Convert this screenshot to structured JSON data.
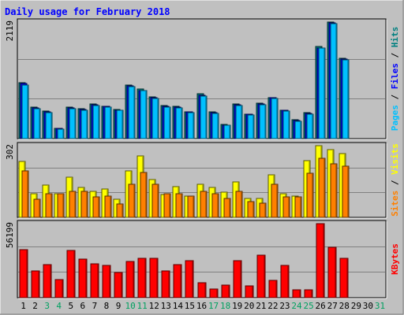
{
  "chart_data": {
    "type": "bar",
    "title": "Daily usage for February 2018",
    "categories": [
      "1",
      "2",
      "3",
      "4",
      "5",
      "6",
      "7",
      "8",
      "9",
      "10",
      "11",
      "12",
      "13",
      "14",
      "15",
      "16",
      "17",
      "18",
      "19",
      "20",
      "21",
      "22",
      "23",
      "24",
      "25",
      "26",
      "27",
      "28",
      "29",
      "30",
      "31"
    ],
    "weekend_days": [
      "3",
      "4",
      "10",
      "11",
      "17",
      "18",
      "24",
      "25",
      "31"
    ],
    "panels": [
      {
        "id": "hits_files_pages",
        "max_label": "2119",
        "ylim": [
          0,
          2119
        ],
        "grid": true,
        "right_label": [
          {
            "text": "Pages",
            "color": "#00c0ff"
          },
          {
            "text": " / ",
            "color": "#000000"
          },
          {
            "text": "Files",
            "color": "#0000ff"
          },
          {
            "text": " / ",
            "color": "#000000"
          },
          {
            "text": "Hits",
            "color": "#008080"
          }
        ],
        "series": [
          {
            "name": "Hits",
            "color": "#008080",
            "values": [
              1020,
              570,
              500,
              190,
              570,
              550,
              630,
              590,
              530,
              980,
              900,
              760,
              600,
              580,
              490,
              810,
              480,
              260,
              630,
              450,
              650,
              750,
              520,
              340,
              470,
              1670,
              2119,
              1460,
              0,
              0,
              0
            ]
          },
          {
            "name": "Files",
            "color": "#0000ff",
            "values": [
              1000,
              560,
              480,
              180,
              560,
              530,
              610,
              580,
              520,
              960,
              880,
              740,
              580,
              570,
              480,
              790,
              470,
              250,
              610,
              440,
              630,
              740,
              510,
              330,
              460,
              1650,
              2100,
              1440,
              0,
              0,
              0
            ]
          },
          {
            "name": "Pages",
            "color": "#00c0ff",
            "values": [
              980,
              550,
              470,
              175,
              550,
              520,
              600,
              570,
              510,
              950,
              870,
              730,
              570,
              560,
              470,
              780,
              460,
              245,
              600,
              430,
              620,
              730,
              500,
              320,
              450,
              1640,
              2090,
              1430,
              0,
              0,
              0
            ]
          }
        ]
      },
      {
        "id": "visits_sites",
        "max_label": "302",
        "ylim": [
          0,
          302
        ],
        "grid": true,
        "right_label": [
          {
            "text": "Sites",
            "color": "#ff8000"
          },
          {
            "text": " / ",
            "color": "#000000"
          },
          {
            "text": "Visits",
            "color": "#ffff00"
          }
        ],
        "series": [
          {
            "name": "Visits",
            "color": "#ffff00",
            "values": [
              235,
              100,
              135,
              100,
              170,
              125,
              110,
              120,
              75,
              195,
              260,
              160,
              95,
              130,
              90,
              140,
              125,
              105,
              150,
              80,
              80,
              180,
              100,
              90,
              240,
              302,
              285,
              270,
              0,
              0,
              0
            ]
          },
          {
            "name": "Sites",
            "color": "#ff8000",
            "values": [
              195,
              75,
              100,
              100,
              110,
              110,
              85,
              90,
              55,
              140,
              190,
              140,
              100,
              100,
              90,
              110,
              100,
              80,
              110,
              65,
              60,
              140,
              85,
              85,
              185,
              250,
              225,
              215,
              0,
              0,
              0
            ]
          }
        ]
      },
      {
        "id": "kbytes",
        "max_label": "56199",
        "ylim": [
          0,
          56199
        ],
        "grid": true,
        "right_label": [
          {
            "text": "KBytes",
            "color": "#ff0000"
          }
        ],
        "series": [
          {
            "name": "KBytes",
            "color": "#ff0000",
            "values": [
              36500,
              20500,
              25300,
              13500,
              36000,
              29200,
              25500,
              24800,
              19000,
              27500,
              29800,
              29800,
              20500,
              25000,
              28100,
              11200,
              6300,
              9400,
              28100,
              8800,
              32300,
              13200,
              24300,
              6100,
              6100,
              56199,
              38000,
              30000,
              0,
              0,
              0
            ]
          }
        ]
      }
    ]
  },
  "colors": {
    "frame_bg": "#c0c0c0",
    "plot_bg": "#c0c0c0",
    "grid": "#808080",
    "title": "#0000ff",
    "day_label": "#000000",
    "weekend_label": "#00a060"
  }
}
